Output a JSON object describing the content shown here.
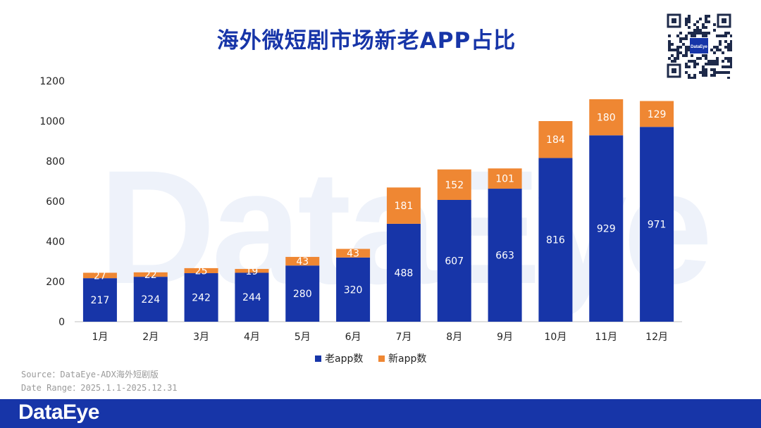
{
  "header": {
    "title": "海外微短剧市场新老APP占比"
  },
  "watermark": {
    "text": "DataEye"
  },
  "qr": {
    "center_label": "DataEye"
  },
  "source": {
    "line1": "Source：DataEye-ADX海外短剧版",
    "line2": "Date Range：2025.1.1-2025.12.31"
  },
  "footer": {
    "logo": "DataEye"
  },
  "colors": {
    "old": "#1735a8",
    "new": "#ef8733",
    "title": "#1735a8",
    "footer": "#1735a8"
  },
  "chart_data": {
    "type": "bar",
    "stacked": true,
    "title": "海外微短剧市场新老APP占比",
    "categories": [
      "1月",
      "2月",
      "3月",
      "4月",
      "5月",
      "6月",
      "7月",
      "8月",
      "9月",
      "10月",
      "11月",
      "12月"
    ],
    "series": [
      {
        "name": "老app数",
        "color": "#1735a8",
        "values": [
          217,
          224,
          242,
          244,
          280,
          320,
          488,
          607,
          663,
          816,
          929,
          971
        ]
      },
      {
        "name": "新app数",
        "color": "#ef8733",
        "values": [
          27,
          22,
          25,
          19,
          43,
          43,
          181,
          152,
          101,
          184,
          180,
          129
        ]
      }
    ],
    "yticks": [
      0,
      200,
      400,
      600,
      800,
      1000,
      1200
    ],
    "ylim": [
      0,
      1200
    ],
    "grid": false,
    "legend": "bottom"
  }
}
